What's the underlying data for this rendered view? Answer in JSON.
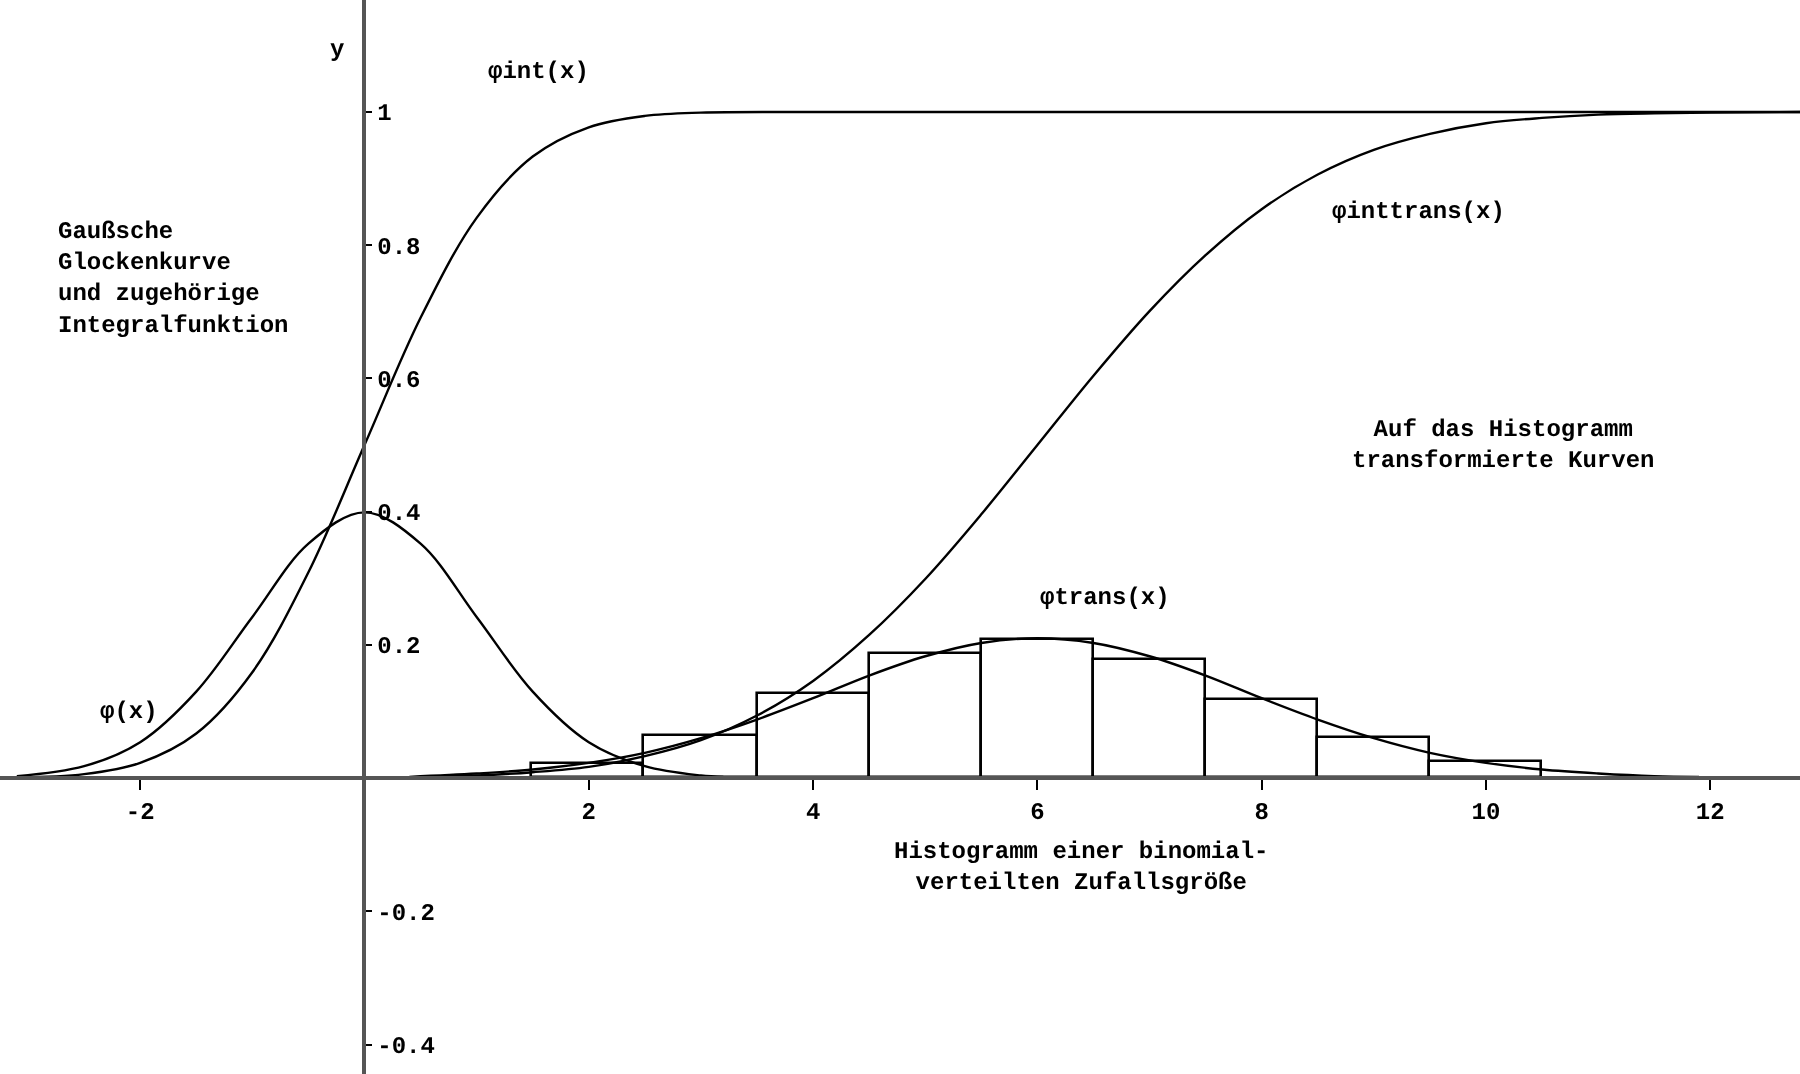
{
  "chart_data": {
    "type": "line",
    "ylabel": "y",
    "xlim": [
      -3.25,
      12.8
    ],
    "ylim": [
      -0.444,
      1.168
    ],
    "xticks": [
      -2,
      2,
      4,
      6,
      8,
      10,
      12
    ],
    "yticks": [
      -0.4,
      -0.2,
      0.2,
      0.4,
      0.6,
      0.8,
      1
    ],
    "marker": "none",
    "line_style": "solid",
    "legend": false,
    "annotations": [
      "Gaußsche\nGlockenkurve\nund zugehörige\nIntegralfunktion",
      "Auf das Histogramm\ntransformierte Kurven",
      "Histogramm einer binomial-\nverteilten Zufallsgröße"
    ],
    "series": [
      {
        "type": "histogram",
        "color": "#000000",
        "bins": [
          0.5,
          1.5,
          2.5,
          3.5,
          4.5,
          5.5,
          6.5,
          7.5,
          8.5,
          9.5,
          10.5,
          11.5
        ],
        "values": [
          null,
          0.022,
          0.063,
          0.127,
          0.186,
          0.207,
          0.177,
          0.118,
          0.061,
          0.024,
          null
        ]
      },
      {
        "name": "φint(x)",
        "color": "#000000",
        "x": [
          -3.1,
          -2.5,
          -2,
          -1.5,
          -1,
          -0.5,
          0,
          0.5,
          1,
          1.5,
          2,
          2.5,
          3,
          4,
          12.8
        ],
        "values": [
          0.001,
          0.006,
          0.023,
          0.067,
          0.159,
          0.309,
          0.5,
          0.691,
          0.841,
          0.933,
          0.977,
          0.994,
          0.999,
          1,
          1
        ]
      },
      {
        "name": "φinttrans(x)",
        "color": "#000000",
        "x": [
          0.4,
          1,
          1.5,
          2,
          2.5,
          3,
          3.5,
          4,
          4.5,
          5,
          5.5,
          6,
          6.5,
          7,
          7.5,
          8,
          8.5,
          9,
          9.5,
          10,
          10.5,
          11,
          11.5,
          12,
          12.8
        ],
        "values": [
          0.001,
          0.004,
          0.009,
          0.017,
          0.033,
          0.057,
          0.094,
          0.146,
          0.215,
          0.299,
          0.396,
          0.5,
          0.604,
          0.701,
          0.785,
          0.854,
          0.906,
          0.943,
          0.967,
          0.983,
          0.991,
          0.996,
          0.998,
          0.999,
          1
        ]
      },
      {
        "name": "φ(x)",
        "color": "#000000",
        "x": [
          -3.1,
          -2.5,
          -2,
          -1.5,
          -1,
          -0.5,
          0,
          0.5,
          1,
          1.5,
          2,
          2.5,
          3,
          3.2
        ],
        "values": [
          0.003,
          0.018,
          0.054,
          0.13,
          0.242,
          0.352,
          0.399,
          0.352,
          0.242,
          0.13,
          0.054,
          0.018,
          0.004,
          0.002
        ]
      },
      {
        "name": "φtrans(x)",
        "color": "#000000",
        "x": [
          0.4,
          1,
          1.5,
          2,
          2.5,
          3,
          3.5,
          4,
          4.5,
          5,
          5.5,
          6,
          6.5,
          7,
          7.5,
          8,
          8.5,
          9,
          9.5,
          10,
          10.5,
          11,
          11.5,
          11.9
        ],
        "values": [
          0.002,
          0.007,
          0.013,
          0.023,
          0.038,
          0.06,
          0.088,
          0.12,
          0.154,
          0.183,
          0.203,
          0.21,
          0.203,
          0.183,
          0.154,
          0.12,
          0.088,
          0.06,
          0.038,
          0.023,
          0.013,
          0.007,
          0.003,
          0.002
        ]
      }
    ]
  }
}
